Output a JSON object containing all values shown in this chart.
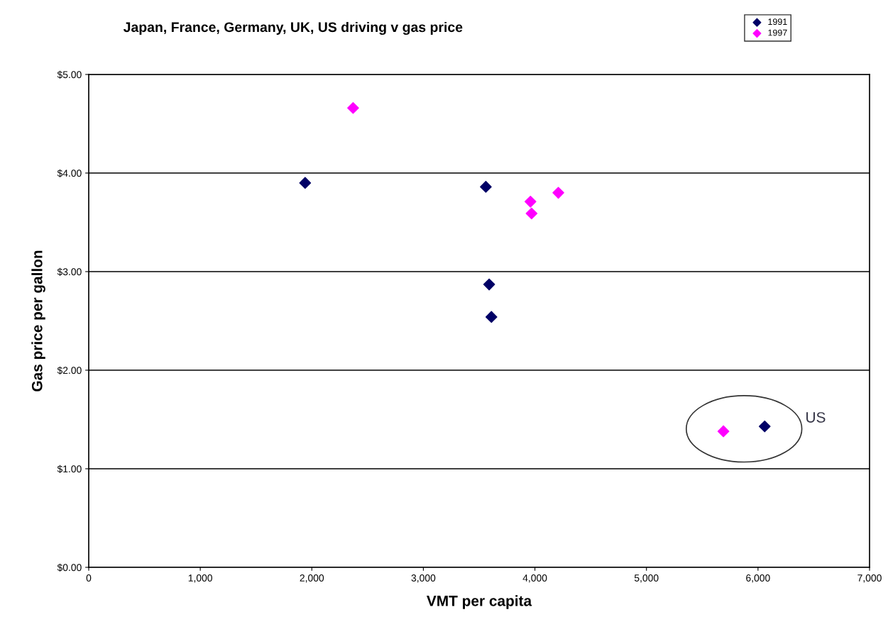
{
  "chart_data": {
    "type": "scatter",
    "title": "Japan, France, Germany, UK, US driving v gas price",
    "xlabel": "VMT per capita",
    "ylabel": "Gas price per gallon",
    "series": [
      {
        "name": "1991",
        "color": "#000066",
        "x": [
          1940,
          3560,
          3590,
          3610,
          6060
        ],
        "values": [
          3.9,
          3.86,
          2.87,
          2.54,
          1.43
        ]
      },
      {
        "name": "1997",
        "color": "#ff00ff",
        "x": [
          2370,
          3960,
          3970,
          4210,
          5690
        ],
        "values": [
          4.66,
          3.71,
          3.59,
          3.8,
          1.38
        ]
      }
    ],
    "annotations": [
      "US"
    ],
    "xlim": [
      0,
      7000
    ],
    "ylim": [
      0,
      5
    ],
    "xticks": [
      0,
      {
        "value": 1000,
        "label": "1,000"
      },
      {
        "value": 2000,
        "label": "2,000"
      },
      {
        "value": 3000,
        "label": "3,000"
      },
      {
        "value": 4000,
        "label": "4,000"
      },
      {
        "value": 5000,
        "label": "5,000"
      },
      {
        "value": 6000,
        "label": "6,000"
      },
      {
        "value": 7000,
        "label": "7,000"
      }
    ],
    "yticks": [
      {
        "value": 0,
        "label": "$0.00"
      },
      {
        "value": 1,
        "label": "$1.00"
      },
      {
        "value": 2,
        "label": "$2.00"
      },
      {
        "value": 3,
        "label": "$3.00"
      },
      {
        "value": 4,
        "label": "$4.00"
      },
      {
        "value": 5,
        "label": "$5.00"
      }
    ],
    "grid": "y",
    "legend": "top right",
    "marker": "diamond"
  }
}
